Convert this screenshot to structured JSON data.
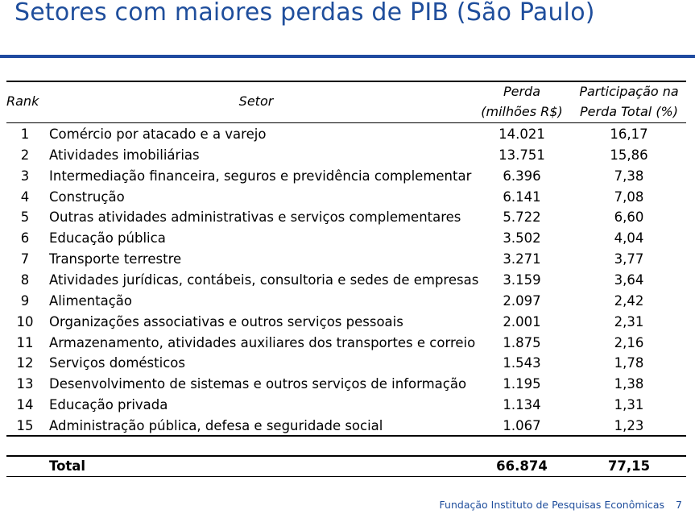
{
  "title": "Setores com maiores perdas de PIB (São Paulo)",
  "colors": {
    "title": "#1f4e9c",
    "accent_rule": "#1f4aa0",
    "footer": "#1f4e9c"
  },
  "table": {
    "headers": {
      "rank": "Rank",
      "setor": "Setor",
      "perda_line1": "Perda",
      "perda_line2": "(milhões R$)",
      "part_line1": "Participação na",
      "part_line2": "Perda Total (%)"
    },
    "rows": [
      {
        "rank": "1",
        "setor": "Comércio por atacado e a varejo",
        "perda": "14.021",
        "part": "16,17"
      },
      {
        "rank": "2",
        "setor": "Atividades imobiliárias",
        "perda": "13.751",
        "part": "15,86"
      },
      {
        "rank": "3",
        "setor": "Intermediação financeira, seguros e previdência complementar",
        "perda": "6.396",
        "part": "7,38"
      },
      {
        "rank": "4",
        "setor": "Construção",
        "perda": "6.141",
        "part": "7,08"
      },
      {
        "rank": "5",
        "setor": "Outras atividades administrativas e serviços complementares",
        "perda": "5.722",
        "part": "6,60"
      },
      {
        "rank": "6",
        "setor": "Educação pública",
        "perda": "3.502",
        "part": "4,04"
      },
      {
        "rank": "7",
        "setor": "Transporte terrestre",
        "perda": "3.271",
        "part": "3,77"
      },
      {
        "rank": "8",
        "setor": "Atividades jurídicas, contábeis, consultoria e sedes de empresas",
        "perda": "3.159",
        "part": "3,64"
      },
      {
        "rank": "9",
        "setor": "Alimentação",
        "perda": "2.097",
        "part": "2,42"
      },
      {
        "rank": "10",
        "setor": "Organizações associativas e outros serviços pessoais",
        "perda": "2.001",
        "part": "2,31"
      },
      {
        "rank": "11",
        "setor": "Armazenamento, atividades auxiliares dos transportes e correio",
        "perda": "1.875",
        "part": "2,16"
      },
      {
        "rank": "12",
        "setor": "Serviços domésticos",
        "perda": "1.543",
        "part": "1,78"
      },
      {
        "rank": "13",
        "setor": "Desenvolvimento de sistemas e outros serviços de informação",
        "perda": "1.195",
        "part": "1,38"
      },
      {
        "rank": "14",
        "setor": "Educação privada",
        "perda": "1.134",
        "part": "1,31"
      },
      {
        "rank": "15",
        "setor": "Administração pública, defesa e seguridade social",
        "perda": "1.067",
        "part": "1,23"
      }
    ],
    "total": {
      "label": "Total",
      "perda": "66.874",
      "part": "77,15"
    }
  },
  "footer": {
    "org": "Fundação Instituto de Pesquisas Econômicas",
    "page": "7"
  }
}
